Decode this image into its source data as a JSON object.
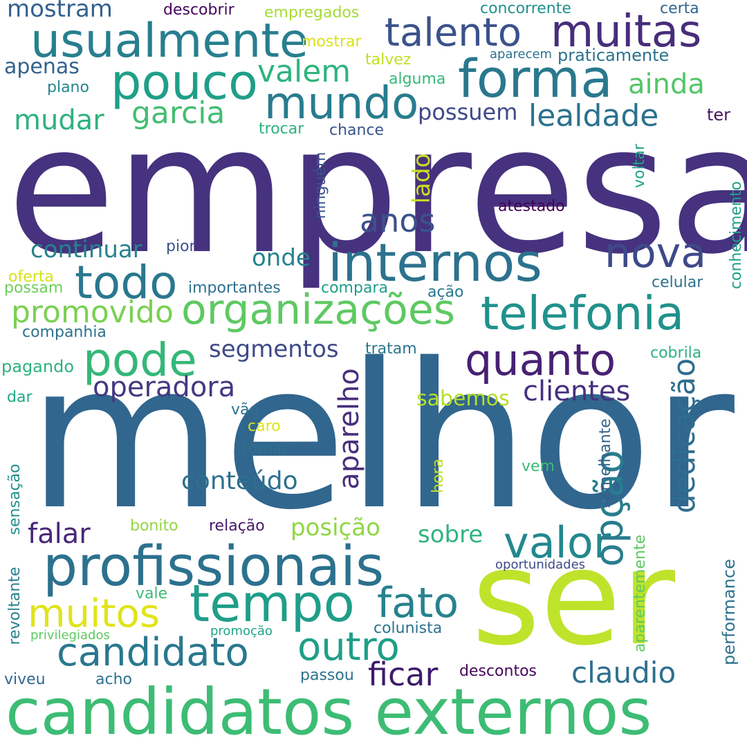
{
  "words": [
    {
      "text": "empresa",
      "color": "#46327e"
    },
    {
      "text": "melhor",
      "color": "#31668e"
    },
    {
      "text": "ser",
      "color": "#bfe32a"
    },
    {
      "text": "candidatos externos",
      "color": "#3dbc74"
    },
    {
      "text": "profissionais",
      "color": "#2c718e"
    },
    {
      "text": "organizações",
      "color": "#5ec962"
    },
    {
      "text": "telefonia",
      "color": "#21918c"
    },
    {
      "text": "internos",
      "color": "#2c728e"
    },
    {
      "text": "usualmente",
      "color": "#277f8e"
    },
    {
      "text": "talento",
      "color": "#3b528b"
    },
    {
      "text": "muitas",
      "color": "#472d7b"
    },
    {
      "text": "forma",
      "color": "#2a788e"
    },
    {
      "text": "pouco",
      "color": "#1f9f88"
    },
    {
      "text": "mundo",
      "color": "#287c8e"
    },
    {
      "text": "todo",
      "color": "#2a788e"
    },
    {
      "text": "tempo",
      "color": "#1f9e89"
    },
    {
      "text": "quanto",
      "color": "#482173"
    },
    {
      "text": "pode",
      "color": "#35b779"
    },
    {
      "text": "nova",
      "color": "#3e4989"
    },
    {
      "text": "valor",
      "color": "#23888e"
    },
    {
      "text": "candidato",
      "color": "#2a788e"
    },
    {
      "text": "outro",
      "color": "#1f9f88"
    },
    {
      "text": "fato",
      "color": "#26828e"
    },
    {
      "text": "muitos",
      "color": "#e0e41a"
    },
    {
      "text": "opção",
      "color": "#287d8e"
    },
    {
      "text": "dedicação",
      "color": "#2e6e8e"
    },
    {
      "text": "claudio",
      "color": "#2e6f8e"
    },
    {
      "text": "ficar",
      "color": "#3e1a6b"
    },
    {
      "text": "promovido",
      "color": "#7ad151"
    },
    {
      "text": "aparelho",
      "color": "#472e7c"
    },
    {
      "text": "operadora",
      "color": "#443983"
    },
    {
      "text": "clientes",
      "color": "#46307e"
    },
    {
      "text": "valem",
      "color": "#2fb47c"
    },
    {
      "text": "garcia",
      "color": "#42be71"
    },
    {
      "text": "lealdade",
      "color": "#2c728e"
    },
    {
      "text": "ainda",
      "color": "#54c568"
    },
    {
      "text": "mudar",
      "color": "#2db27d"
    },
    {
      "text": "apenas",
      "color": "#33638d"
    },
    {
      "text": "mostram",
      "color": "#34618d"
    },
    {
      "text": "possuem",
      "color": "#3f4889"
    },
    {
      "text": "anos",
      "color": "#3b528b"
    },
    {
      "text": "continuar",
      "color": "#26828e"
    },
    {
      "text": "onde",
      "color": "#25838e"
    },
    {
      "text": "falar",
      "color": "#482878"
    },
    {
      "text": "posição",
      "color": "#8fd744"
    },
    {
      "text": "sobre",
      "color": "#2fb47c"
    },
    {
      "text": "conteúdo",
      "color": "#2d708e"
    },
    {
      "text": "segmentos",
      "color": "#3e4a89"
    },
    {
      "text": "sabemos",
      "color": "#b5de2b"
    },
    {
      "text": "lado",
      "color": "#c8e020"
    },
    {
      "text": "descobrir",
      "color": "#450559"
    },
    {
      "text": "empregados",
      "color": "#a5db36"
    },
    {
      "text": "mostrar",
      "color": "#d8e219"
    },
    {
      "text": "talvez",
      "color": "#c2df23"
    },
    {
      "text": "concorrente",
      "color": "#21918c"
    },
    {
      "text": "certa",
      "color": "#32658e"
    },
    {
      "text": "aparecem",
      "color": "#2c718e"
    },
    {
      "text": "praticamente",
      "color": "#2c728e"
    },
    {
      "text": "plano",
      "color": "#24878e"
    },
    {
      "text": "alguma",
      "color": "#37b878"
    },
    {
      "text": "trocar",
      "color": "#2db27d"
    },
    {
      "text": "chance",
      "color": "#3a548c"
    },
    {
      "text": "ter",
      "color": "#471365"
    },
    {
      "text": "ninguém",
      "color": "#39558c"
    },
    {
      "text": "voltar",
      "color": "#20a386"
    },
    {
      "text": "atestado",
      "color": "#440256"
    },
    {
      "text": "conhecimento",
      "color": "#1fa088"
    },
    {
      "text": "pior",
      "color": "#3b528b"
    },
    {
      "text": "oferta",
      "color": "#d5e21a"
    },
    {
      "text": "possam",
      "color": "#6ece58"
    },
    {
      "text": "importantes",
      "color": "#2c728e"
    },
    {
      "text": "compara",
      "color": "#1f9e89"
    },
    {
      "text": "ação",
      "color": "#2a788e"
    },
    {
      "text": "celular",
      "color": "#2c728e"
    },
    {
      "text": "companhia",
      "color": "#2c718e"
    },
    {
      "text": "tratam",
      "color": "#2a788e"
    },
    {
      "text": "cobrila",
      "color": "#2db27d"
    },
    {
      "text": "pagando",
      "color": "#2db27d"
    },
    {
      "text": "dar",
      "color": "#22a785"
    },
    {
      "text": "vão",
      "color": "#2c728e"
    },
    {
      "text": "caro",
      "color": "#dde318"
    },
    {
      "text": "tomar",
      "color": "#2c728e"
    },
    {
      "text": "semelhante",
      "color": "#35608d"
    },
    {
      "text": "hora",
      "color": "#c0df25"
    },
    {
      "text": "vem",
      "color": "#3bbb75"
    },
    {
      "text": "sensação",
      "color": "#21918c"
    },
    {
      "text": "bonito",
      "color": "#93d741"
    },
    {
      "text": "relação",
      "color": "#48186a"
    },
    {
      "text": "performance",
      "color": "#2c728e"
    },
    {
      "text": "aparentemente",
      "color": "#5ec962"
    },
    {
      "text": "oportunidades",
      "color": "#3e4c8a"
    },
    {
      "text": "revoltante",
      "color": "#26818e"
    },
    {
      "text": "vale",
      "color": "#3bbb75"
    },
    {
      "text": "colunista",
      "color": "#2c728e"
    },
    {
      "text": "privilegiados",
      "color": "#5ec962"
    },
    {
      "text": "promoção",
      "color": "#20a486"
    },
    {
      "text": "passou",
      "color": "#2c728e"
    },
    {
      "text": "descontos",
      "color": "#46085c"
    },
    {
      "text": "viveu",
      "color": "#31688e"
    },
    {
      "text": "acho",
      "color": "#2c718e"
    }
  ]
}
